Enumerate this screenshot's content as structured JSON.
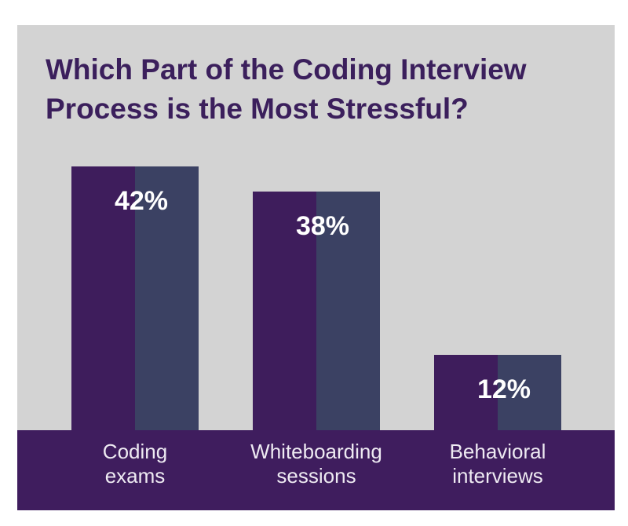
{
  "chart_data": {
    "type": "bar",
    "title": "Which Part of the Coding Interview Process is the Most Stressful?",
    "categories": [
      [
        "Coding",
        "exams"
      ],
      [
        "Whiteboarding",
        "sessions"
      ],
      [
        "Behavioral",
        "interviews"
      ]
    ],
    "values": [
      42,
      38,
      12
    ],
    "value_labels": [
      "42%",
      "38%",
      "12%"
    ],
    "colors": [
      "#3e1d5c",
      "#3b4163"
    ],
    "ylim": [
      0,
      50
    ]
  }
}
